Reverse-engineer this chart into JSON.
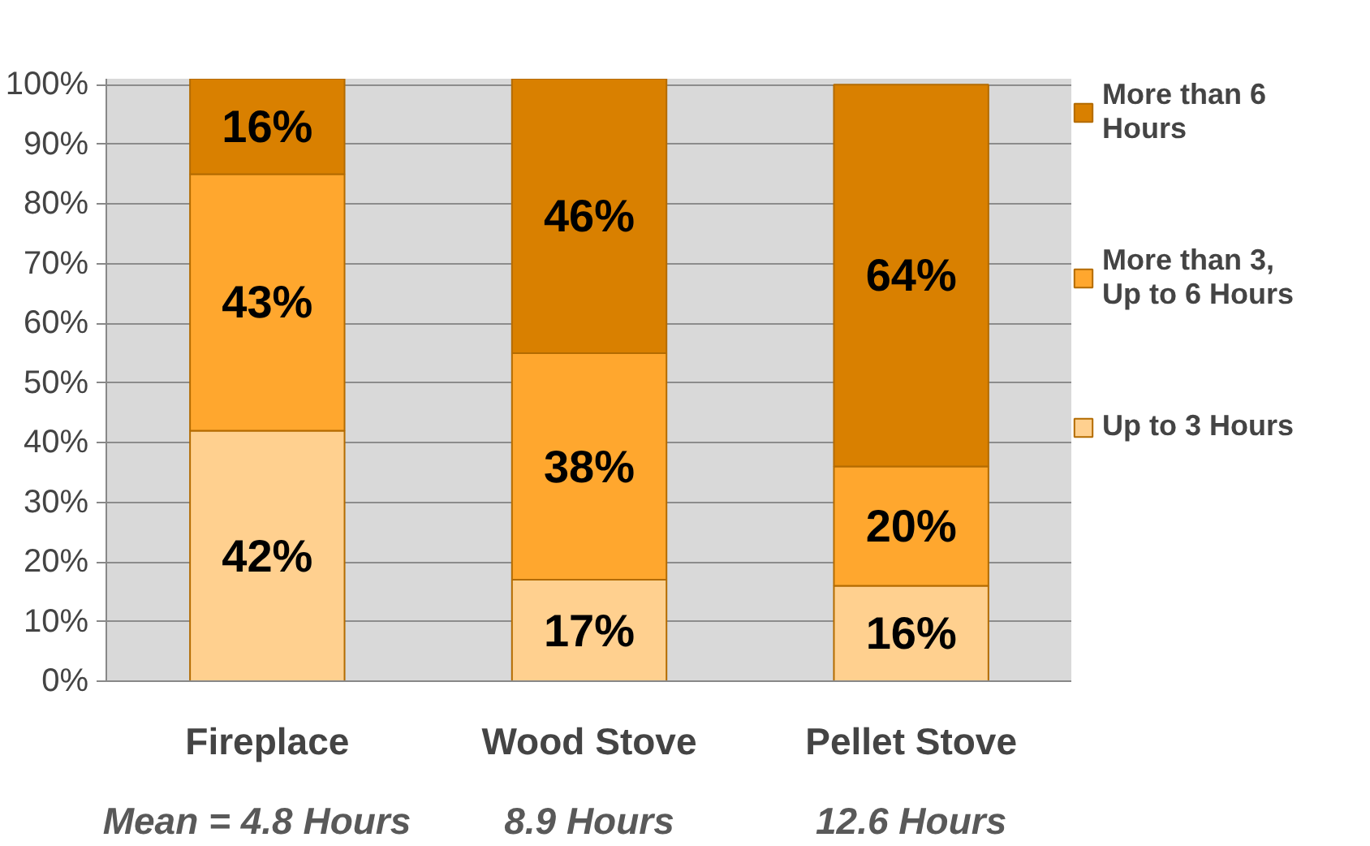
{
  "chart_data": {
    "type": "bar",
    "stacked": true,
    "categories": [
      "Fireplace",
      "Wood Stove",
      "Pellet Stove"
    ],
    "series": [
      {
        "name": "Up to 3 Hours",
        "color": "#ffd08f",
        "values": [
          42,
          17,
          16
        ]
      },
      {
        "name": "More than 3,\nUp to 6 Hours",
        "color": "#ffa72e",
        "values": [
          43,
          38,
          20
        ]
      },
      {
        "name": "More than 6\nHours",
        "color": "#d98000",
        "values": [
          16,
          46,
          64
        ]
      }
    ],
    "value_labels": [
      [
        "42%",
        "17%",
        "16%"
      ],
      [
        "43%",
        "38%",
        "20%"
      ],
      [
        "16%",
        "46%",
        "64%"
      ]
    ],
    "ylim": [
      0,
      101
    ],
    "yticks": [
      {
        "value": 0,
        "label": "0%"
      },
      {
        "value": 10,
        "label": "10%"
      },
      {
        "value": 20,
        "label": "20%"
      },
      {
        "value": 30,
        "label": "30%"
      },
      {
        "value": 40,
        "label": "40%"
      },
      {
        "value": 50,
        "label": "50%"
      },
      {
        "value": 60,
        "label": "60%"
      },
      {
        "value": 70,
        "label": "70%"
      },
      {
        "value": 80,
        "label": "80%"
      },
      {
        "value": 90,
        "label": "90%"
      },
      {
        "value": 100,
        "label": "100%"
      }
    ],
    "grid": "y",
    "legend": "right",
    "annotations": [
      "Mean  =  4.8 Hours",
      "8.9 Hours",
      "12.6 Hours"
    ]
  }
}
